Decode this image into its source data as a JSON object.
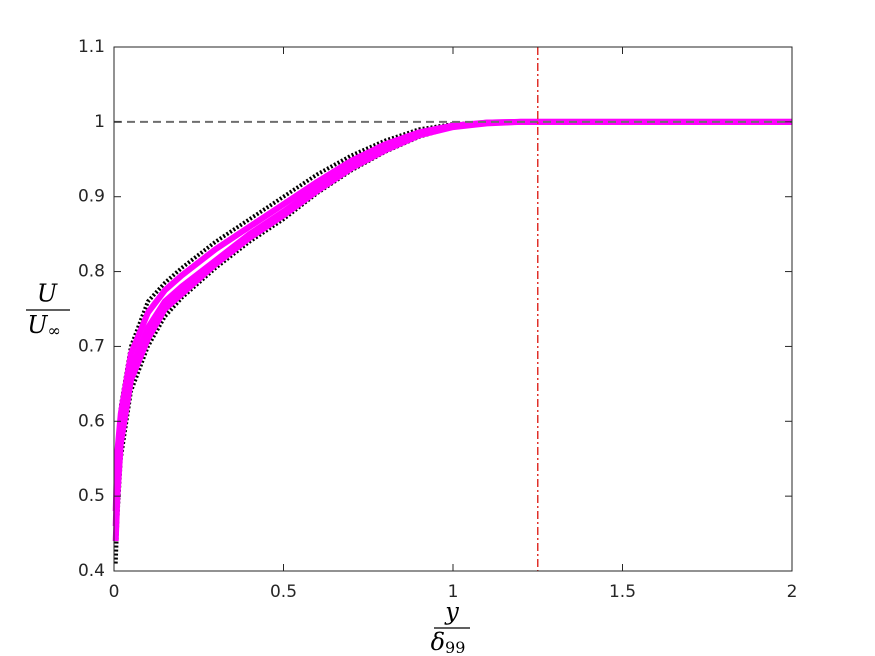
{
  "chart_data": {
    "type": "line",
    "xlabel": {
      "numerator": "y",
      "denominator": {
        "base": "δ",
        "sub": "99"
      }
    },
    "ylabel": {
      "numerator": "U",
      "denominator": {
        "base": "U",
        "sub": "∞"
      }
    },
    "x": [
      0.005,
      0.01,
      0.02,
      0.05,
      0.1,
      0.15,
      0.2,
      0.3,
      0.4,
      0.5,
      0.6,
      0.7,
      0.8,
      0.9,
      1.0,
      1.1,
      1.2,
      1.3,
      1.5,
      1.75,
      2.0
    ],
    "series": [
      {
        "color": "#000000",
        "style": "dotted",
        "values": [
          0.45,
          0.55,
          0.62,
          0.7,
          0.76,
          0.785,
          0.805,
          0.84,
          0.87,
          0.9,
          0.93,
          0.955,
          0.975,
          0.99,
          0.997,
          0.999,
          1.0,
          1.0,
          1.0,
          1.0,
          1.0
        ]
      },
      {
        "color": "#000000",
        "style": "dotted",
        "values": [
          0.41,
          0.47,
          0.55,
          0.64,
          0.7,
          0.74,
          0.765,
          0.805,
          0.84,
          0.87,
          0.905,
          0.935,
          0.96,
          0.98,
          0.993,
          0.998,
          1.0,
          1.0,
          1.0,
          1.0,
          1.0
        ]
      },
      {
        "color": "#ff00ff",
        "style": "solid",
        "values": [
          0.48,
          0.56,
          0.61,
          0.69,
          0.745,
          0.775,
          0.795,
          0.83,
          0.86,
          0.89,
          0.92,
          0.948,
          0.97,
          0.986,
          0.995,
          0.999,
          1.0,
          1.0,
          1.0,
          1.0,
          1.0
        ]
      },
      {
        "color": "#ff00ff",
        "style": "solid",
        "values": [
          0.46,
          0.53,
          0.59,
          0.67,
          0.725,
          0.76,
          0.78,
          0.815,
          0.85,
          0.88,
          0.912,
          0.94,
          0.965,
          0.983,
          0.994,
          0.999,
          1.0,
          1.0,
          1.0,
          1.0,
          1.0
        ]
      },
      {
        "color": "#ff00ff",
        "style": "solid",
        "values": [
          0.44,
          0.5,
          0.57,
          0.655,
          0.71,
          0.75,
          0.77,
          0.81,
          0.845,
          0.875,
          0.908,
          0.938,
          0.962,
          0.982,
          0.993,
          0.998,
          1.0,
          1.0,
          1.0,
          1.0,
          1.0
        ]
      }
    ],
    "hlines": [
      {
        "value": 1,
        "color": "#6e6e6e",
        "style": "dashed"
      }
    ],
    "vlines": [
      {
        "value": 1.25,
        "color": "#e0302a",
        "style": "dashdot"
      }
    ],
    "xlim": [
      0,
      2
    ],
    "xticks": [
      0,
      0.5,
      1,
      1.5,
      2
    ],
    "ylim": [
      0.4,
      1.1
    ],
    "yticks": [
      0.4,
      0.5,
      0.6,
      0.7,
      0.8,
      0.9,
      1,
      1.1
    ],
    "grid": false
  }
}
